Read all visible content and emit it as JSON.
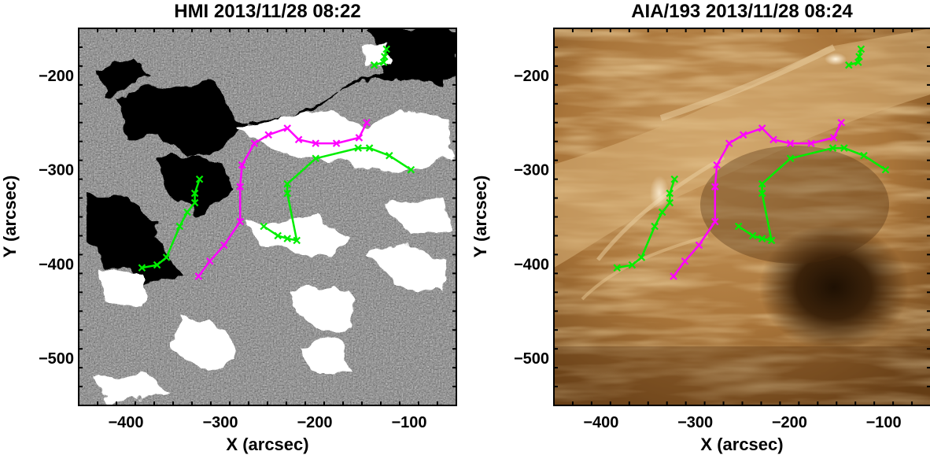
{
  "chart_data": [
    {
      "type": "line",
      "background": "hmi-magnetogram",
      "title": "HMI 2013/11/28 08:22",
      "xlabel": "X (arcsec)",
      "ylabel": "Y (arcsec)",
      "xlim": [
        -450,
        -50
      ],
      "ylim": [
        -550,
        -150
      ],
      "xticks": [
        -400,
        -300,
        -200,
        -100
      ],
      "yticks": [
        -200,
        -300,
        -400,
        -500
      ],
      "series": [
        {
          "color": "#ff00ff",
          "points": [
            [
              -323,
              -413
            ],
            [
              -311,
              -397
            ],
            [
              -296,
              -380
            ],
            [
              -279,
              -355
            ],
            [
              -279,
              -318
            ],
            [
              -277,
              -295
            ],
            [
              -264,
              -272
            ],
            [
              -249,
              -263
            ],
            [
              -229,
              -256
            ],
            [
              -217,
              -268
            ],
            [
              -199,
              -272
            ],
            [
              -177,
              -272
            ],
            [
              -153,
              -266
            ],
            [
              -145,
              -250
            ]
          ]
        },
        {
          "color": "#00ee00",
          "points": [
            [
              -254,
              -360
            ],
            [
              -239,
              -370
            ],
            [
              -229,
              -373
            ],
            [
              -219,
              -375
            ],
            [
              -229,
              -325
            ],
            [
              -229,
              -315
            ],
            [
              -199,
              -288
            ],
            [
              -154,
              -277
            ],
            [
              -142,
              -277
            ],
            [
              -121,
              -285
            ],
            [
              -98,
              -300
            ]
          ]
        },
        {
          "color": "#00ee00",
          "points": [
            [
              -383,
              -404
            ],
            [
              -367,
              -401
            ],
            [
              -357,
              -393
            ],
            [
              -343,
              -360
            ],
            [
              -335,
              -345
            ],
            [
              -327,
              -335
            ],
            [
              -327,
              -325
            ],
            [
              -322,
              -310
            ]
          ]
        },
        {
          "color": "#00ee00",
          "points": [
            [
              -137,
              -189
            ],
            [
              -127,
              -186
            ],
            [
              -126,
              -180
            ],
            [
              -124,
              -172
            ]
          ]
        }
      ]
    },
    {
      "type": "line",
      "background": "aia-193-euv",
      "title": "AIA/193 2013/11/28 08:24",
      "xlabel": "X (arcsec)",
      "ylabel": "Y (arcsec)",
      "xlim": [
        -450,
        -50
      ],
      "ylim": [
        -550,
        -150
      ],
      "xticks": [
        -400,
        -300,
        -200,
        -100
      ],
      "yticks": [
        -200,
        -300,
        -400,
        -500
      ],
      "series": [
        {
          "color": "#ff00ff",
          "points": [
            [
              -323,
              -413
            ],
            [
              -311,
              -397
            ],
            [
              -296,
              -380
            ],
            [
              -279,
              -355
            ],
            [
              -279,
              -318
            ],
            [
              -277,
              -295
            ],
            [
              -264,
              -272
            ],
            [
              -249,
              -263
            ],
            [
              -229,
              -256
            ],
            [
              -217,
              -268
            ],
            [
              -199,
              -272
            ],
            [
              -177,
              -272
            ],
            [
              -153,
              -266
            ],
            [
              -145,
              -250
            ]
          ]
        },
        {
          "color": "#00ee00",
          "points": [
            [
              -254,
              -360
            ],
            [
              -239,
              -370
            ],
            [
              -229,
              -373
            ],
            [
              -219,
              -375
            ],
            [
              -229,
              -325
            ],
            [
              -229,
              -315
            ],
            [
              -199,
              -288
            ],
            [
              -154,
              -277
            ],
            [
              -142,
              -277
            ],
            [
              -121,
              -285
            ],
            [
              -98,
              -300
            ]
          ]
        },
        {
          "color": "#00ee00",
          "points": [
            [
              -383,
              -404
            ],
            [
              -367,
              -401
            ],
            [
              -357,
              -393
            ],
            [
              -343,
              -360
            ],
            [
              -335,
              -345
            ],
            [
              -327,
              -335
            ],
            [
              -327,
              -325
            ],
            [
              -322,
              -310
            ]
          ]
        },
        {
          "color": "#00ee00",
          "points": [
            [
              -137,
              -189
            ],
            [
              -127,
              -186
            ],
            [
              -126,
              -180
            ],
            [
              -124,
              -172
            ]
          ]
        }
      ]
    }
  ]
}
